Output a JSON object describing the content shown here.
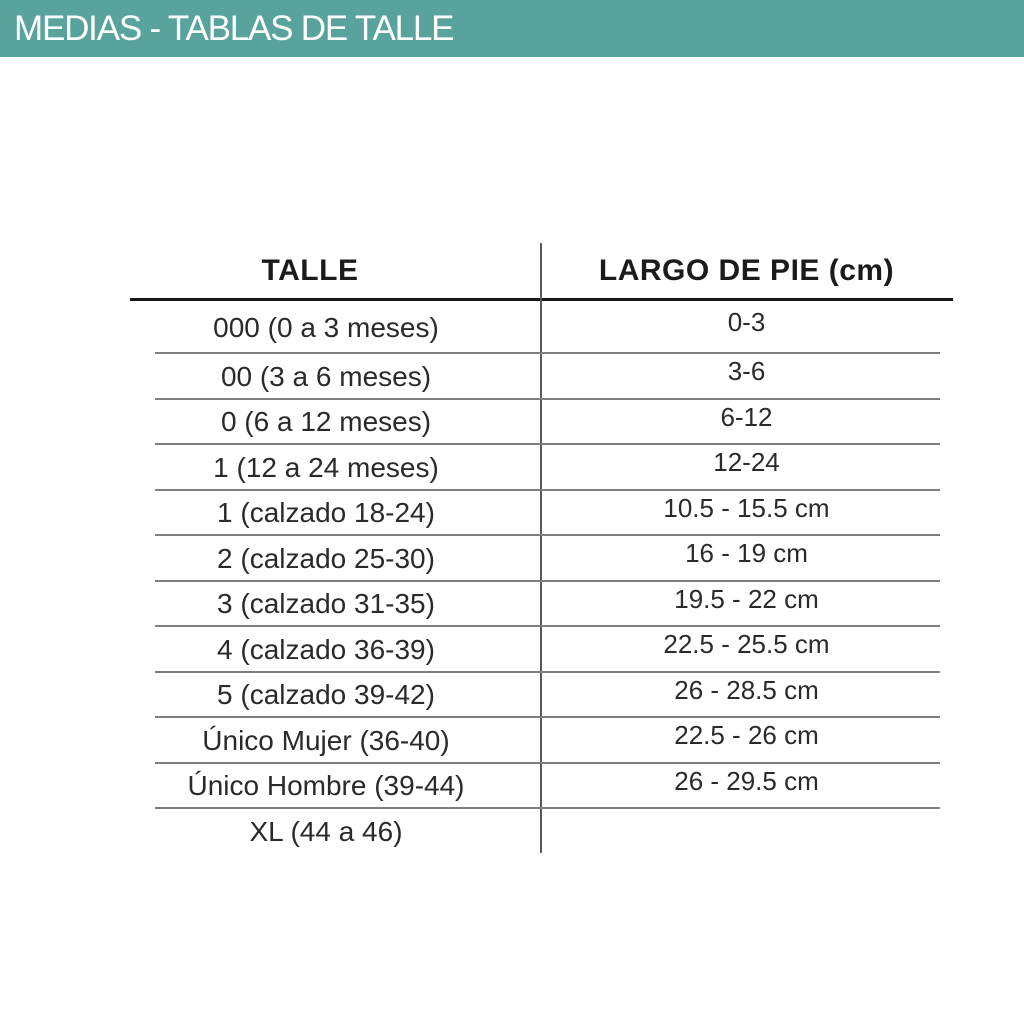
{
  "header": {
    "title": "MEDIAS - TABLAS DE TALLE",
    "bg_color": "#58a39c",
    "text_color": "#ffffff"
  },
  "table": {
    "columns": [
      {
        "label": "TALLE"
      },
      {
        "label": "LARGO DE PIE (cm)"
      }
    ],
    "rows": [
      {
        "talle": "000 (0 a 3 meses)",
        "largo": "0-3"
      },
      {
        "talle": "00 (3 a 6 meses)",
        "largo": "3-6"
      },
      {
        "talle": "0 (6 a 12 meses)",
        "largo": "6-12"
      },
      {
        "talle": "1 (12 a 24 meses)",
        "largo": "12-24"
      },
      {
        "talle": "1 (calzado 18-24)",
        "largo": "10.5 - 15.5 cm"
      },
      {
        "talle": "2 (calzado 25-30)",
        "largo": "16 - 19 cm"
      },
      {
        "talle": "3 (calzado 31-35)",
        "largo": "19.5 - 22 cm"
      },
      {
        "talle": "4 (calzado 36-39)",
        "largo": "22.5 - 25.5 cm"
      },
      {
        "talle": "5 (calzado 39-42)",
        "largo": "26 - 28.5 cm"
      },
      {
        "talle": "Único Mujer (36-40)",
        "largo": "22.5 - 26 cm"
      },
      {
        "talle": "Único Hombre (39-44)",
        "largo": "26 - 29.5 cm"
      },
      {
        "talle": "XL (44 a 46)",
        "largo": ""
      }
    ]
  }
}
